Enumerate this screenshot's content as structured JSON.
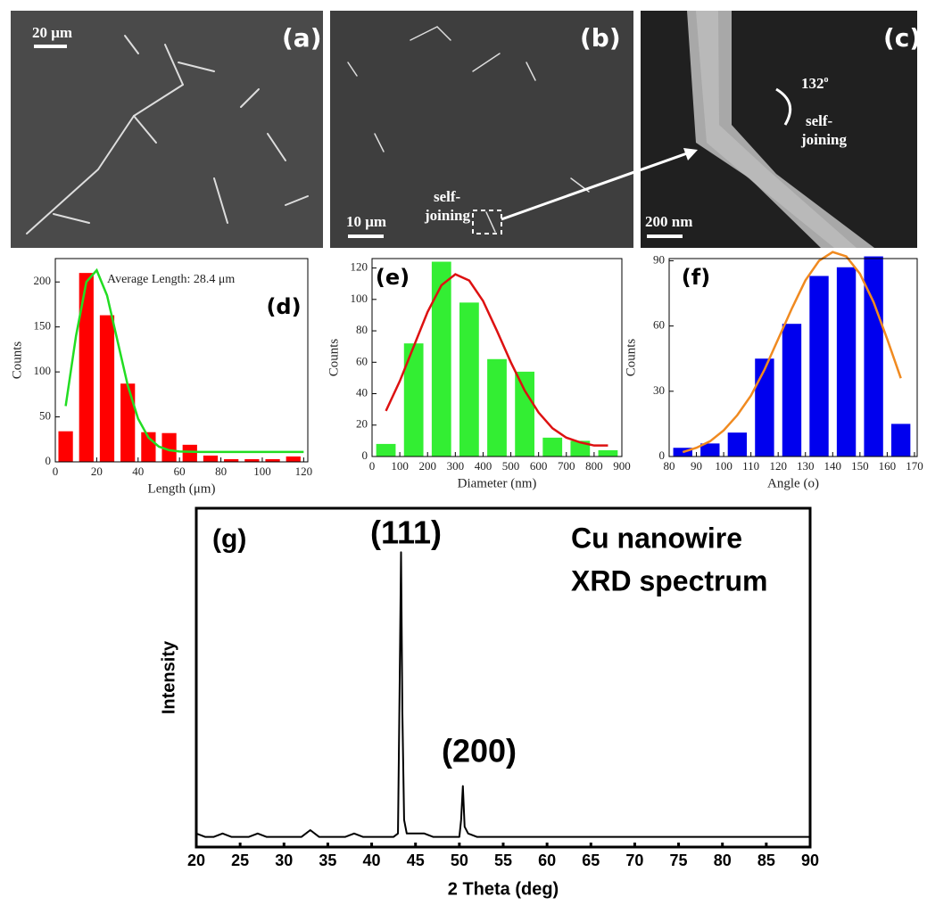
{
  "panels": [
    {
      "label": "(a)",
      "scale": "20 μm"
    },
    {
      "label": "(b)",
      "scale": "10 μm",
      "note": [
        "self-",
        "joining"
      ]
    },
    {
      "label": "(c)",
      "scale": "200 nm",
      "angle": "132",
      "angle_sup": "o",
      "note": [
        "self-",
        "joining"
      ]
    }
  ],
  "chart_data": [
    {
      "type": "bar",
      "x": [
        5,
        15,
        25,
        35,
        45,
        55,
        65,
        75,
        85,
        95,
        105,
        115
      ],
      "values": [
        34,
        210,
        163,
        87,
        33,
        32,
        19,
        7,
        3,
        3,
        3,
        6
      ],
      "color": "#ff0000",
      "fit": {
        "color": "#22dd22",
        "x": [
          5,
          10,
          15,
          20,
          25,
          30,
          35,
          40,
          45,
          50,
          55,
          60,
          70,
          80,
          90,
          100,
          110,
          120
        ],
        "values": [
          62,
          140,
          200,
          213,
          185,
          135,
          85,
          48,
          27,
          17,
          13,
          11.5,
          11,
          11,
          11,
          11,
          11,
          11
        ]
      },
      "xlim": [
        0,
        122
      ],
      "ylim": [
        0,
        226
      ],
      "xticks": [
        0,
        20,
        40,
        60,
        80,
        100,
        120
      ],
      "yticks": [
        0,
        50,
        100,
        150,
        200
      ],
      "x_label": "Length (μm)",
      "y_label": "Counts",
      "annotations": [
        "(d)",
        "Average Length: 28.4 μm"
      ]
    },
    {
      "type": "bar",
      "x": [
        50,
        150,
        250,
        350,
        450,
        550,
        650,
        750,
        850
      ],
      "values": [
        8,
        72,
        124,
        98,
        62,
        54,
        12,
        10,
        4
      ],
      "color": "#33ee33",
      "fit": {
        "color": "#dd1111",
        "x": [
          50,
          100,
          150,
          200,
          250,
          300,
          350,
          400,
          450,
          500,
          550,
          600,
          650,
          700,
          750,
          800,
          850
        ],
        "values": [
          29,
          48,
          70,
          92,
          109,
          116,
          112,
          99,
          80,
          60,
          42,
          28,
          18,
          12,
          9,
          7,
          7
        ]
      },
      "xlim": [
        0,
        900
      ],
      "ylim": [
        0,
        126
      ],
      "xticks": [
        0,
        100,
        200,
        300,
        400,
        500,
        600,
        700,
        800,
        900
      ],
      "yticks": [
        0,
        20,
        40,
        60,
        80,
        100,
        120
      ],
      "x_label": "Diameter (nm)",
      "y_label": "Counts",
      "annotations": [
        "(e)"
      ]
    },
    {
      "type": "bar",
      "x": [
        85,
        95,
        105,
        115,
        125,
        135,
        145,
        155,
        165
      ],
      "values": [
        4,
        6,
        11,
        45,
        61,
        83,
        87,
        92,
        15
      ],
      "color": "#0000ee",
      "fit": {
        "color": "#f08a20",
        "x": [
          85,
          90,
          95,
          100,
          105,
          110,
          115,
          120,
          125,
          130,
          135,
          140,
          145,
          150,
          155,
          160,
          165
        ],
        "values": [
          2,
          4,
          7,
          12,
          19,
          28,
          40,
          54,
          68,
          81,
          90,
          94,
          92,
          84,
          71,
          54,
          36
        ]
      },
      "xlim": [
        80,
        171
      ],
      "ylim": [
        0,
        91
      ],
      "xticks": [
        80,
        90,
        100,
        110,
        120,
        130,
        140,
        150,
        160,
        170
      ],
      "yticks": [
        0,
        30,
        60,
        90
      ],
      "x_label": "Angle (o)",
      "y_label": "Counts",
      "annotations": [
        "(f)"
      ]
    },
    {
      "type": "line",
      "color": "#000000",
      "x": [
        20,
        21,
        22,
        23,
        24,
        25,
        26,
        27,
        28,
        29,
        30,
        31,
        32,
        33,
        34,
        35,
        36,
        37,
        38,
        39,
        40,
        41,
        42,
        42.5,
        43,
        43.2,
        43.35,
        43.5,
        43.7,
        44,
        45,
        46,
        47,
        48,
        49,
        50,
        50.2,
        50.4,
        50.6,
        51,
        52,
        53,
        54,
        55,
        56,
        57,
        58,
        59,
        60,
        61,
        62,
        63,
        64,
        65,
        66,
        67,
        68,
        69,
        70,
        71,
        72,
        73,
        74,
        75,
        76,
        77,
        78,
        79,
        80,
        81,
        82,
        83,
        84,
        85,
        86,
        87,
        88,
        89,
        90
      ],
      "values": [
        4,
        3,
        3,
        4,
        3,
        3,
        3,
        4,
        3,
        3,
        3,
        3,
        3,
        5,
        3,
        3,
        3,
        3,
        4,
        3,
        3,
        3,
        3,
        3,
        4,
        50,
        87,
        40,
        8,
        4,
        4,
        4,
        3,
        3,
        3,
        3,
        8,
        18,
        6,
        4,
        3,
        3,
        3,
        3,
        3,
        3,
        3,
        3,
        3,
        3,
        3,
        3,
        3,
        3,
        3,
        3,
        3,
        3,
        3,
        3,
        3,
        3,
        3,
        3,
        3,
        3,
        3,
        3,
        3,
        3,
        3,
        3,
        3,
        3,
        3,
        3,
        3,
        3,
        3
      ],
      "xlim": [
        20,
        90
      ],
      "ylim": [
        0,
        100
      ],
      "xticks": [
        20,
        25,
        30,
        35,
        40,
        45,
        50,
        55,
        60,
        65,
        70,
        75,
        80,
        85,
        90
      ],
      "x_label": "2 Theta (deg)",
      "y_label": "Intensity",
      "annotations": [
        "(g)",
        "(111)",
        "(200)",
        "Cu nanowire",
        "XRD spectrum"
      ]
    }
  ]
}
